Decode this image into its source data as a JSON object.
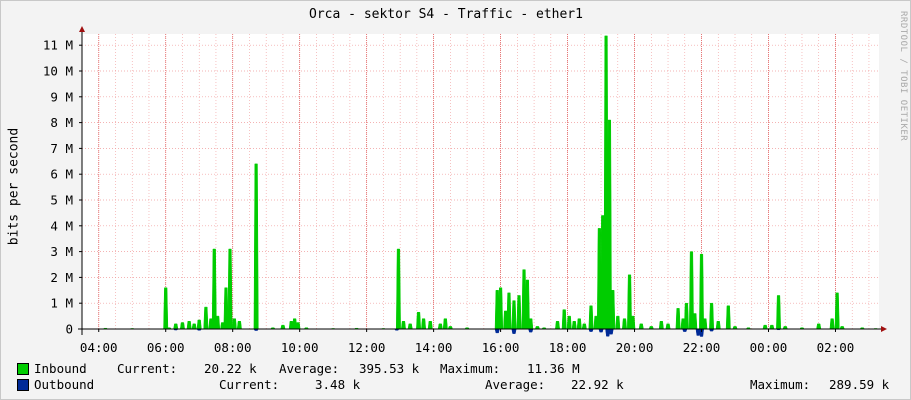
{
  "title": "Orca - sektor S4 - Traffic - ether1",
  "watermark": "RRDTOOL / TOBI OETIKER",
  "colors": {
    "inbound": "#00cc00",
    "outbound": "#002a97",
    "grid": "#f09a9a",
    "axis": "#000000",
    "background": "#f3f3f3",
    "plot_background": "#ffffff"
  },
  "chart_data": {
    "type": "area",
    "title": "Orca - sektor S4 - Traffic - ether1",
    "ylabel": "bits per second",
    "xlabel": "",
    "ylim": [
      0,
      11.36
    ],
    "y_unit": "M",
    "x_range_hours": [
      3.5,
      27.3
    ],
    "x_ticks": [
      "04:00",
      "06:00",
      "08:00",
      "10:00",
      "12:00",
      "14:00",
      "16:00",
      "18:00",
      "20:00",
      "22:00",
      "00:00",
      "02:00"
    ],
    "y_ticks": [
      "0",
      "1 M",
      "2 M",
      "3 M",
      "4 M",
      "5 M",
      "6 M",
      "7 M",
      "8 M",
      "9 M",
      "10 M",
      "11 M"
    ],
    "grid": true,
    "series": [
      {
        "name": "Inbound",
        "color": "#00cc00",
        "points": [
          [
            4.2,
            0.03
          ],
          [
            5.0,
            0.02
          ],
          [
            6.0,
            1.6
          ],
          [
            6.1,
            0.05
          ],
          [
            6.3,
            0.2
          ],
          [
            6.5,
            0.25
          ],
          [
            6.7,
            0.3
          ],
          [
            6.85,
            0.2
          ],
          [
            7.0,
            0.35
          ],
          [
            7.2,
            0.85
          ],
          [
            7.35,
            0.4
          ],
          [
            7.45,
            3.1
          ],
          [
            7.55,
            0.5
          ],
          [
            7.7,
            0.25
          ],
          [
            7.8,
            1.6
          ],
          [
            7.92,
            3.1
          ],
          [
            8.05,
            0.4
          ],
          [
            8.2,
            0.3
          ],
          [
            8.7,
            6.4
          ],
          [
            9.2,
            0.05
          ],
          [
            9.5,
            0.15
          ],
          [
            9.75,
            0.3
          ],
          [
            9.85,
            0.4
          ],
          [
            9.95,
            0.25
          ],
          [
            10.2,
            0.05
          ],
          [
            11.0,
            0.02
          ],
          [
            11.7,
            0.03
          ],
          [
            12.5,
            0.02
          ],
          [
            12.95,
            3.1
          ],
          [
            13.1,
            0.3
          ],
          [
            13.3,
            0.2
          ],
          [
            13.55,
            0.65
          ],
          [
            13.7,
            0.4
          ],
          [
            13.9,
            0.3
          ],
          [
            14.2,
            0.2
          ],
          [
            14.35,
            0.4
          ],
          [
            14.5,
            0.1
          ],
          [
            15.0,
            0.05
          ],
          [
            15.9,
            1.5
          ],
          [
            16.0,
            1.6
          ],
          [
            16.15,
            0.7
          ],
          [
            16.25,
            1.4
          ],
          [
            16.4,
            1.1
          ],
          [
            16.55,
            1.3
          ],
          [
            16.7,
            2.3
          ],
          [
            16.8,
            1.9
          ],
          [
            16.9,
            0.4
          ],
          [
            17.1,
            0.1
          ],
          [
            17.3,
            0.05
          ],
          [
            17.7,
            0.3
          ],
          [
            17.9,
            0.75
          ],
          [
            18.05,
            0.5
          ],
          [
            18.2,
            0.3
          ],
          [
            18.35,
            0.4
          ],
          [
            18.5,
            0.2
          ],
          [
            18.7,
            0.9
          ],
          [
            18.85,
            0.5
          ],
          [
            18.95,
            3.9
          ],
          [
            19.05,
            4.4
          ],
          [
            19.15,
            11.36
          ],
          [
            19.25,
            8.1
          ],
          [
            19.35,
            1.5
          ],
          [
            19.5,
            0.5
          ],
          [
            19.7,
            0.4
          ],
          [
            19.85,
            2.1
          ],
          [
            19.95,
            0.5
          ],
          [
            20.2,
            0.2
          ],
          [
            20.5,
            0.1
          ],
          [
            20.8,
            0.3
          ],
          [
            21.0,
            0.2
          ],
          [
            21.3,
            0.8
          ],
          [
            21.45,
            0.4
          ],
          [
            21.55,
            1.0
          ],
          [
            21.7,
            3.0
          ],
          [
            21.8,
            0.6
          ],
          [
            22.0,
            2.9
          ],
          [
            22.1,
            0.4
          ],
          [
            22.3,
            1.0
          ],
          [
            22.5,
            0.3
          ],
          [
            22.8,
            0.9
          ],
          [
            23.0,
            0.1
          ],
          [
            23.4,
            0.05
          ],
          [
            23.9,
            0.15
          ],
          [
            24.1,
            0.15
          ],
          [
            24.3,
            1.3
          ],
          [
            24.5,
            0.1
          ],
          [
            25.0,
            0.05
          ],
          [
            25.5,
            0.2
          ],
          [
            25.9,
            0.4
          ],
          [
            26.05,
            1.4
          ],
          [
            26.2,
            0.1
          ],
          [
            26.8,
            0.05
          ],
          [
            27.2,
            0.02
          ]
        ],
        "current": "20.22 k",
        "average": "395.53 k",
        "maximum": "11.36 M"
      },
      {
        "name": "Outbound",
        "color": "#002a97",
        "points": [
          [
            6.3,
            0.04
          ],
          [
            7.0,
            0.05
          ],
          [
            8.7,
            0.06
          ],
          [
            12.9,
            0.05
          ],
          [
            15.9,
            0.15
          ],
          [
            16.4,
            0.18
          ],
          [
            16.9,
            0.12
          ],
          [
            18.7,
            0.1
          ],
          [
            19.0,
            0.12
          ],
          [
            19.2,
            0.28
          ],
          [
            19.3,
            0.2
          ],
          [
            21.5,
            0.1
          ],
          [
            21.9,
            0.25
          ],
          [
            22.0,
            0.29
          ],
          [
            22.3,
            0.08
          ],
          [
            24.3,
            0.03
          ]
        ],
        "current": "3.48 k",
        "average": "22.92 k",
        "maximum": "289.59 k"
      }
    ]
  },
  "legend": {
    "current_label": "Current:",
    "average_label": "Average:",
    "maximum_label": "Maximum:"
  }
}
